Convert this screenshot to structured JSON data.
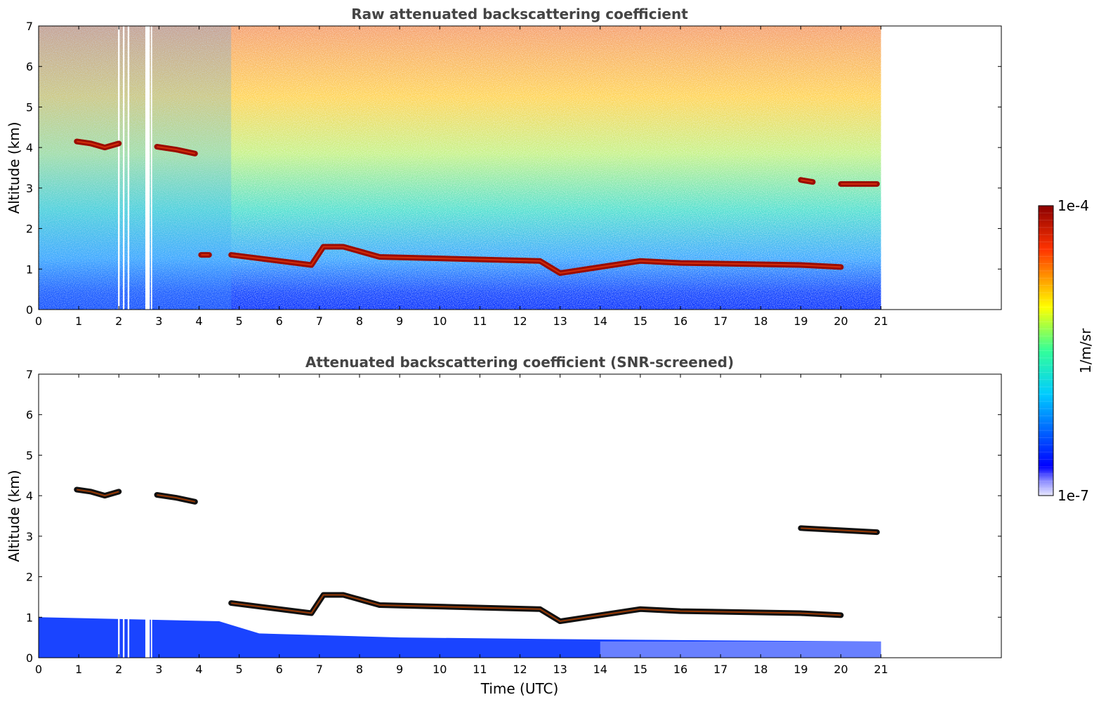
{
  "chart_data": [
    {
      "type": "heatmap",
      "title": "Raw attenuated backscattering coefficient",
      "xlabel": "",
      "ylabel": "Altitude (km)",
      "xlim": [
        0,
        24
      ],
      "ylim": [
        0,
        7
      ],
      "xticks": [
        0,
        1,
        2,
        3,
        4,
        5,
        6,
        7,
        8,
        9,
        10,
        11,
        12,
        13,
        14,
        15,
        16,
        17,
        18,
        19,
        20,
        21
      ],
      "yticks": [
        0,
        1,
        2,
        3,
        4,
        5,
        6,
        7
      ],
      "data_extent_x": [
        0,
        21
      ],
      "data_gaps_x": [
        [
          1.98,
          2.02
        ],
        [
          2.1,
          2.14
        ],
        [
          2.22,
          2.26
        ],
        [
          2.66,
          2.77
        ],
        [
          2.8,
          2.83
        ]
      ],
      "cloud_layers": [
        {
          "t": [
            0.95,
            2.0
          ],
          "alt": [
            4.15,
            4.1,
            4.0,
            4.1
          ]
        },
        {
          "t": [
            2.95,
            3.9
          ],
          "alt": [
            4.02,
            3.95,
            3.85
          ]
        },
        {
          "t": [
            4.05,
            4.25
          ],
          "alt": [
            1.35,
            1.35
          ]
        },
        {
          "t": [
            4.8,
            6.8,
            7.1,
            7.6,
            8.5,
            12.5,
            13.0,
            15.0,
            16.0,
            19.0,
            20.0
          ],
          "alt": [
            1.35,
            1.1,
            1.55,
            1.55,
            1.3,
            1.2,
            0.9,
            1.2,
            1.15,
            1.1,
            1.05
          ]
        },
        {
          "t": [
            19.0,
            19.3
          ],
          "alt": [
            3.2,
            3.15
          ]
        },
        {
          "t": [
            20.0,
            20.9
          ],
          "alt": [
            3.1,
            3.1
          ]
        }
      ]
    },
    {
      "type": "heatmap",
      "title": "Attenuated backscattering coefficient (SNR-screened)",
      "xlabel": "Time (UTC)",
      "ylabel": "Altitude (km)",
      "xlim": [
        0,
        24
      ],
      "ylim": [
        0,
        7
      ],
      "xticks": [
        0,
        1,
        2,
        3,
        4,
        5,
        6,
        7,
        8,
        9,
        10,
        11,
        12,
        13,
        14,
        15,
        16,
        17,
        18,
        19,
        20,
        21
      ],
      "yticks": [
        0,
        1,
        2,
        3,
        4,
        5,
        6,
        7
      ],
      "data_extent_x": [
        0,
        21
      ],
      "boundary_layer_top_km": [
        [
          0,
          1.0
        ],
        [
          4.5,
          0.9
        ],
        [
          5.5,
          0.6
        ],
        [
          9,
          0.5
        ],
        [
          14,
          0.45
        ],
        [
          21,
          0.4
        ]
      ],
      "cloud_layers": [
        {
          "t": [
            0.95,
            2.0
          ],
          "alt": [
            4.15,
            4.1,
            4.0,
            4.1
          ]
        },
        {
          "t": [
            2.95,
            3.9
          ],
          "alt": [
            4.02,
            3.95,
            3.85
          ]
        },
        {
          "t": [
            4.8,
            6.8,
            7.1,
            7.6,
            8.5,
            12.5,
            13.0,
            15.0,
            16.0,
            19.0,
            20.0
          ],
          "alt": [
            1.35,
            1.1,
            1.55,
            1.55,
            1.3,
            1.2,
            0.9,
            1.2,
            1.15,
            1.1,
            1.05
          ]
        },
        {
          "t": [
            19.0,
            20.9
          ],
          "alt": [
            3.2,
            3.1
          ]
        }
      ]
    }
  ],
  "colorbar": {
    "label": "1/m/sr",
    "max_label": "1e-4",
    "min_label": "1e-7",
    "colormap": "jet",
    "scale": "log"
  }
}
